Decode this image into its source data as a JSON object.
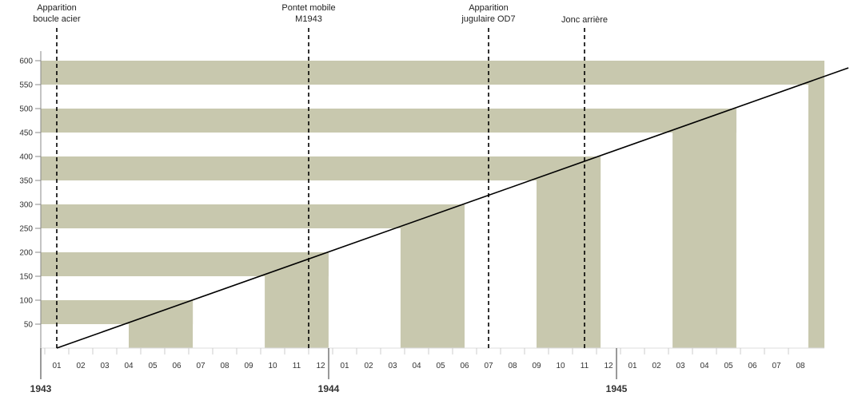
{
  "chart_data": {
    "type": "area",
    "title": "",
    "xlabel": "",
    "ylabel": "",
    "ylim": [
      0,
      600
    ],
    "y_ticks": [
      50,
      100,
      150,
      200,
      250,
      300,
      350,
      400,
      450,
      500,
      550,
      600
    ],
    "x_start": "1943-01",
    "x_end": "1945-08",
    "month_labels": [
      "01",
      "02",
      "03",
      "04",
      "05",
      "06",
      "07",
      "08",
      "09",
      "10",
      "11",
      "12",
      "01",
      "02",
      "03",
      "04",
      "05",
      "06",
      "07",
      "08",
      "09",
      "10",
      "11",
      "12",
      "01",
      "02",
      "03",
      "04",
      "05",
      "06",
      "07",
      "08"
    ],
    "years": [
      {
        "label": "1943",
        "month_index": 0
      },
      {
        "label": "1944",
        "month_index": 12
      },
      {
        "label": "1945",
        "month_index": 24
      }
    ],
    "bands": [
      {
        "y_low": 50,
        "y_high": 100,
        "x_from": 3.0,
        "x_to": 5.67
      },
      {
        "y_low": 150,
        "y_high": 200,
        "x_from": 8.67,
        "x_to": 11.33
      },
      {
        "y_low": 250,
        "y_high": 300,
        "x_from": 14.33,
        "x_to": 17.0
      },
      {
        "y_low": 350,
        "y_high": 400,
        "x_from": 20.0,
        "x_to": 22.67
      },
      {
        "y_low": 450,
        "y_high": 500,
        "x_from": 25.67,
        "x_to": 28.33
      },
      {
        "y_low": 550,
        "y_high": 600,
        "x_from": 31.33,
        "x_to": 32.0
      }
    ],
    "trend_line": {
      "from": [
        0,
        0
      ],
      "to": [
        33.0,
        585
      ]
    },
    "events": [
      {
        "label": [
          "Apparition",
          "boucle acier"
        ],
        "month_index": 0
      },
      {
        "label": [
          "Pontet mobile",
          "M1943"
        ],
        "month_index": 10.5
      },
      {
        "label": [
          "Apparition",
          "jugulaire OD7"
        ],
        "month_index": 18
      },
      {
        "label": [
          "Jonc arrière"
        ],
        "month_index": 22
      }
    ],
    "colors": {
      "band": "#c8c8ae",
      "line": "#000000",
      "axis": "#888888",
      "text": "#333333"
    }
  }
}
